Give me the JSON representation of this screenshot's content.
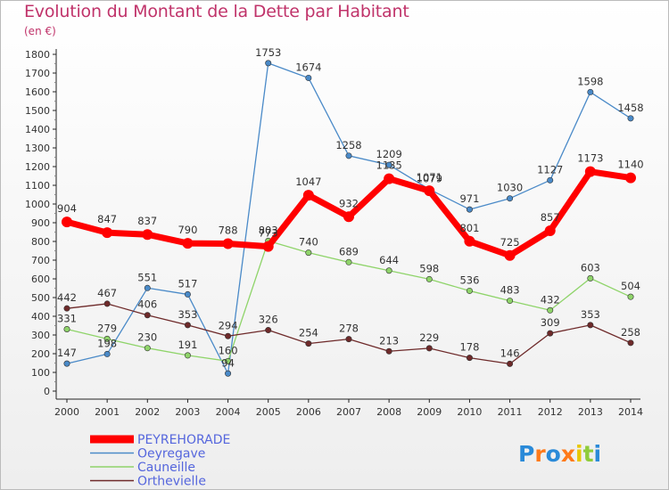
{
  "chart_data": {
    "type": "line",
    "title": "Evolution du Montant de la Dette par Habitant",
    "subtitle": "(en €)",
    "x": [
      "2000",
      "2001",
      "2002",
      "2003",
      "2004",
      "2005",
      "2006",
      "2007",
      "2008",
      "2009",
      "2010",
      "2011",
      "2012",
      "2013",
      "2014"
    ],
    "ylim": [
      0,
      1800
    ],
    "yticks": [
      0,
      100,
      200,
      300,
      400,
      500,
      600,
      700,
      800,
      900,
      1000,
      1100,
      1200,
      1300,
      1400,
      1500,
      1600,
      1700,
      1800
    ],
    "grid": false,
    "legend_position": "bottom-left",
    "series": [
      {
        "name": "PEYREHORADE",
        "color": "#ff0000",
        "values": [
          904,
          847,
          837,
          790,
          788,
          773,
          1047,
          932,
          1135,
          1071,
          801,
          725,
          857,
          1173,
          1140
        ]
      },
      {
        "name": "Oeyregave",
        "color": "#4a8ac8",
        "values": [
          147,
          198,
          551,
          517,
          94,
          1753,
          1674,
          1258,
          1209,
          1079,
          971,
          1030,
          1127,
          1598,
          1458
        ]
      },
      {
        "name": "Cauneille",
        "color": "#8fd46a",
        "values": [
          331,
          279,
          230,
          191,
          160,
          803,
          740,
          689,
          644,
          598,
          536,
          483,
          432,
          603,
          504
        ]
      },
      {
        "name": "Orthevielle",
        "color": "#6e2a2a",
        "values": [
          442,
          467,
          406,
          353,
          294,
          326,
          254,
          278,
          213,
          229,
          178,
          146,
          309,
          353,
          258
        ]
      }
    ]
  },
  "branding": {
    "logo_text": "Proxiti"
  }
}
